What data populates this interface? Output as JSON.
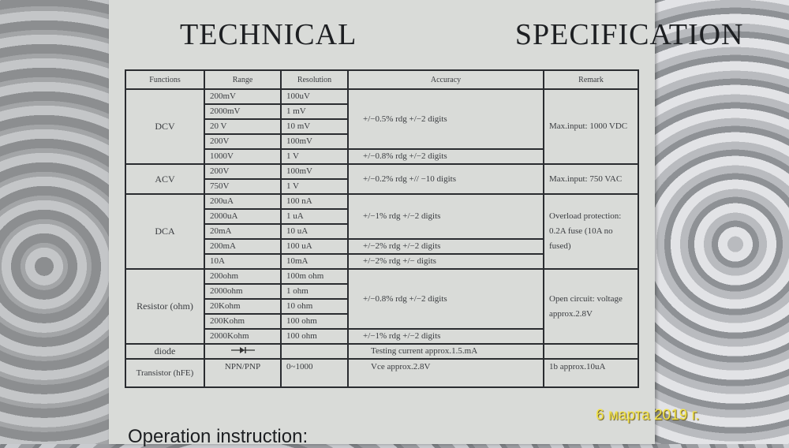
{
  "title": "TECHNICAL    SPECIFICATION",
  "headers": [
    "Functions",
    "Range",
    "Resolution",
    "Accuracy",
    "Remark"
  ],
  "groups": [
    {
      "function": "DCV",
      "remark": "Max.input: 1000 VDC",
      "rows": [
        [
          "200mV",
          "100uV"
        ],
        [
          "2000mV",
          "1 mV"
        ],
        [
          "20 V",
          "10 mV"
        ],
        [
          "200V",
          "100mV"
        ],
        [
          "1000V",
          "1 V"
        ]
      ],
      "accuracy": [
        {
          "text": "+/−0.5% rdg  +/−2 digits",
          "span": 4
        },
        {
          "text": "+/−0.8% rdg +/−2 digits",
          "span": 1
        }
      ]
    },
    {
      "function": "ACV",
      "remark": "Max.input: 750 VAC",
      "rows": [
        [
          "200V",
          "100mV"
        ],
        [
          "750V",
          "1 V"
        ]
      ],
      "accuracy": [
        {
          "text": "+/−0.2% rdg +// −10 digits",
          "span": 2
        }
      ]
    },
    {
      "function": "DCA",
      "remark": "Overload protection: 0.2A fuse (10A no fused)",
      "rows": [
        [
          "200uA",
          "100 nA"
        ],
        [
          "2000uA",
          "1 uA"
        ],
        [
          "20mA",
          "10 uA"
        ],
        [
          "200mA",
          "100 uA"
        ],
        [
          "10A",
          "10mA"
        ]
      ],
      "accuracy": [
        {
          "text": "+/−1% rdg +/−2 digits",
          "span": 3
        },
        {
          "text": "+/−2% rdg  +/−2 digits",
          "span": 1
        },
        {
          "text": "+/−2% rdg  +/− digits",
          "span": 1
        }
      ]
    },
    {
      "function": "Resistor (ohm)",
      "remark": "Open circuit: voltage approx.2.8V",
      "rows": [
        [
          "200ohm",
          "100m ohm"
        ],
        [
          "2000ohm",
          "1 ohm"
        ],
        [
          "20Kohm",
          "10 ohm"
        ],
        [
          "200Kohm",
          "100 ohm"
        ],
        [
          "2000Kohm",
          "100 ohm"
        ]
      ],
      "accuracy": [
        {
          "text": "+/−0.8% rdg  +/−2 digits",
          "span": 4
        },
        {
          "text": "+/−1% rdg  +/−2 digits",
          "span": 1
        }
      ]
    }
  ],
  "diode": {
    "function": "diode",
    "range_icon": "diode-symbol-icon",
    "accuracy": "Testing current approx.1.5.mA",
    "remark": ""
  },
  "transistor": {
    "function": "Transistor (hFE)",
    "range": "NPN/PNP",
    "resolution": "0~1000",
    "accuracy": "Vce approx.2.8V",
    "remark": "1b approx.10uA"
  },
  "footer_heading": "Operation instruction:",
  "date_stamp": "6 марта 2019 г.",
  "colors": {
    "paper": "#d9dbd8",
    "ink": "#2a2c30",
    "date_stamp": "#f2e34a"
  }
}
